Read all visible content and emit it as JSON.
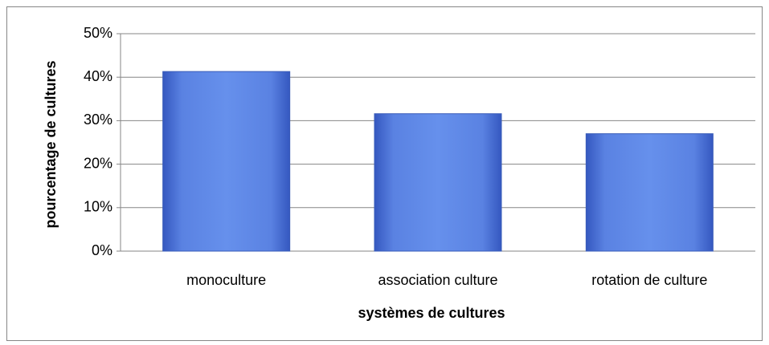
{
  "chart_data": {
    "type": "bar",
    "x_label": "systèmes de cultures",
    "y_label": "pourcentage de cultures",
    "categories": [
      "monoculture",
      "association culture",
      "rotation de culture"
    ],
    "values": [
      41.3,
      31.6,
      27.0
    ],
    "color": "#4f78dc",
    "ylim": [
      0,
      50
    ],
    "yticks": [
      {
        "value": 0,
        "label": "0%"
      },
      {
        "value": 10,
        "label": "10%"
      },
      {
        "value": 20,
        "label": "20%"
      },
      {
        "value": 30,
        "label": "30%"
      },
      {
        "value": 40,
        "label": "40%"
      },
      {
        "value": 50,
        "label": "50%"
      }
    ],
    "grid": true
  }
}
